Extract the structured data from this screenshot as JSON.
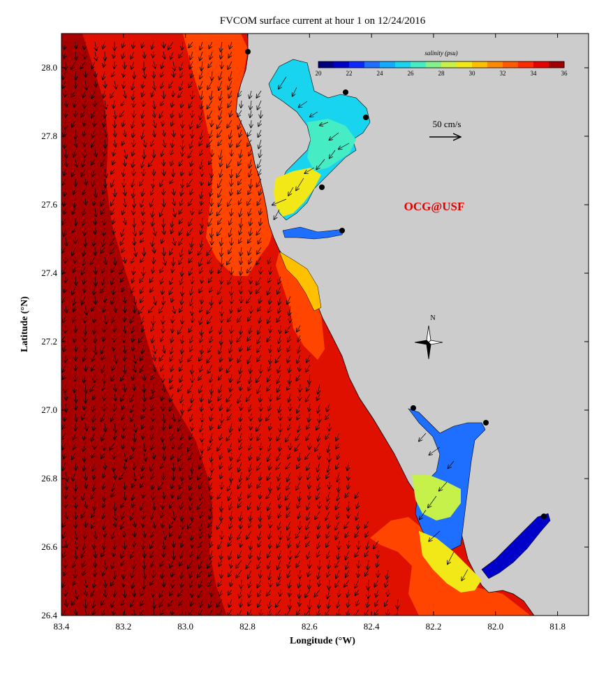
{
  "title": "FVCOM surface current at hour 1 on 12/24/2016",
  "x_axis": {
    "label": "Longitude (°W)",
    "ticks": [
      "83.4",
      "83.2",
      "83.0",
      "82.8",
      "82.6",
      "82.4",
      "82.2",
      "82.0",
      "81.8"
    ],
    "range": [
      83.4,
      81.7
    ]
  },
  "y_axis": {
    "label": "Latitude (°N)",
    "ticks": [
      "28.0",
      "27.8",
      "27.6",
      "27.4",
      "27.2",
      "27.0",
      "26.8",
      "26.6",
      "26.4"
    ],
    "range": [
      26.4,
      28.1
    ]
  },
  "colorbar": {
    "title": "salinity (psu)",
    "ticks": [
      "20",
      "22",
      "24",
      "26",
      "28",
      "30",
      "32",
      "34",
      "36"
    ],
    "colors": [
      "#00007f",
      "#0000c8",
      "#0a28ff",
      "#1e6eff",
      "#14aaff",
      "#18d4ee",
      "#46ecc4",
      "#84f28a",
      "#c6f04a",
      "#f2e818",
      "#ffc000",
      "#ff8a00",
      "#ff5a00",
      "#ff2a00",
      "#e60000",
      "#a00000"
    ]
  },
  "scale_arrow": {
    "label": "50 cm/s"
  },
  "credit": "OCG@USF",
  "compass": {
    "label": "N"
  },
  "colors": {
    "land": "#cccccc",
    "offshore": "#a80000",
    "shelf": "#e01000",
    "nearshore": "#ff4500",
    "credit": "#e00000"
  }
}
